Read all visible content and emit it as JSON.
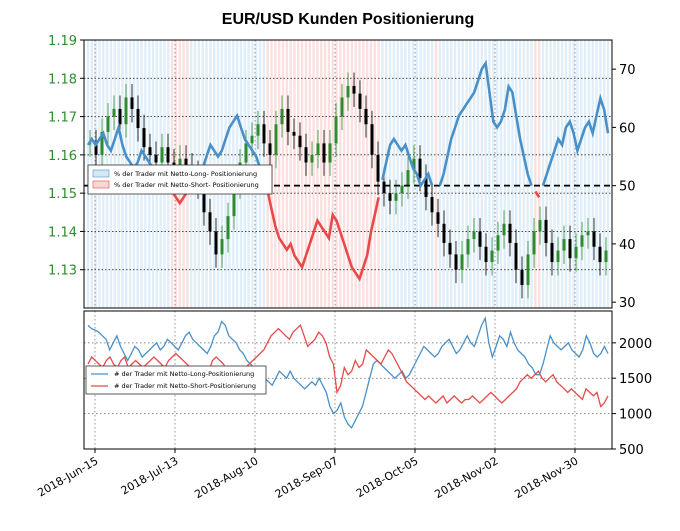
{
  "title": "EUR/USD Kunden Positionierung",
  "colors": {
    "price_up": "#2e8b2e",
    "price_down": "#000000",
    "long_line": "#4a90c8",
    "short_line": "#e84a4a",
    "long_fill": "#d6e8f7",
    "short_fill": "#fbd6d6",
    "left_tick": "#2e8b2e"
  },
  "x_labels": [
    "2018-Jun-15",
    "2018-Jul-13",
    "2018-Aug-10",
    "2018-Sep-07",
    "2018-Oct-05",
    "2018-Nov-02",
    "2018-Nov-30"
  ],
  "chart_data": [
    {
      "type": "line",
      "panel": "top",
      "title": "EUR/USD Kunden Positionierung",
      "y_left_ticks": [
        "1.13",
        "1.14",
        "1.15",
        "1.16",
        "1.17",
        "1.18",
        "1.19"
      ],
      "y_left_range": [
        1.12,
        1.19
      ],
      "y_right_ticks": [
        "30",
        "40",
        "50",
        "60",
        "70"
      ],
      "y_right_range": [
        29,
        75
      ],
      "reference_line": 50,
      "legend": {
        "placement": "upper-left",
        "entries": [
          "% der Trader mit Netto-Long- Positionierung",
          "% der Trader mit Netto-Short- Positionierung"
        ]
      },
      "sentiment_pct_long": [
        57,
        58,
        57,
        58,
        59,
        57,
        56,
        58,
        60,
        57,
        55,
        54,
        53,
        54,
        56,
        55,
        54,
        53,
        52,
        51,
        52,
        50,
        49,
        48,
        47,
        48,
        49,
        50,
        51,
        52,
        53,
        55,
        57,
        56,
        55,
        56,
        58,
        60,
        61,
        62,
        60,
        58,
        57,
        56,
        55,
        53,
        51,
        49,
        46,
        43,
        41,
        40,
        39,
        40,
        38,
        37,
        36,
        38,
        40,
        42,
        44,
        43,
        42,
        41,
        45,
        44,
        42,
        40,
        38,
        36,
        35,
        34,
        36,
        38,
        42,
        45,
        48,
        51,
        54,
        57,
        58,
        57,
        56,
        57,
        55,
        53,
        52,
        50,
        51,
        52,
        50,
        49,
        50,
        52,
        55,
        58,
        60,
        62,
        63,
        64,
        65,
        66,
        68,
        70,
        71,
        66,
        61,
        60,
        61,
        63,
        67,
        66,
        62,
        58,
        55,
        52,
        50,
        49,
        48,
        50,
        52,
        54,
        56,
        58,
        57,
        60,
        61,
        59,
        56,
        58,
        60,
        61,
        59,
        62,
        65,
        63,
        59
      ]
    },
    {
      "type": "line",
      "panel": "bottom",
      "y_right_ticks": [
        "500",
        "1000",
        "1500",
        "2000"
      ],
      "y_right_range": [
        500,
        2450
      ],
      "legend": {
        "placement": "left",
        "entries": [
          "# der Trader mit Netto-Long-Positionierung",
          "# der Trader mit Netto-Short-Positionierung"
        ]
      },
      "series": [
        {
          "name": "# der Trader mit Netto-Long-Positionierung",
          "values": [
            2250,
            2200,
            2180,
            2150,
            2100,
            2050,
            1900,
            2000,
            2100,
            1950,
            1850,
            1750,
            1850,
            1950,
            1900,
            1800,
            1850,
            1900,
            1950,
            2000,
            1900,
            1950,
            2050,
            2000,
            1950,
            1900,
            2000,
            2100,
            2150,
            2050,
            2000,
            1950,
            1900,
            1850,
            1950,
            2100,
            2150,
            2300,
            2250,
            2100,
            2050,
            2000,
            1900,
            1850,
            1750,
            1700,
            1650,
            1600,
            1550,
            1500,
            1450,
            1400,
            1500,
            1600,
            1550,
            1500,
            1600,
            1500,
            1450,
            1400,
            1350,
            1400,
            1450,
            1400,
            1500,
            1400,
            1300,
            1100,
            1000,
            1050,
            1150,
            950,
            850,
            800,
            900,
            1000,
            1100,
            1300,
            1500,
            1700,
            1750,
            1700,
            1650,
            1600,
            1550,
            1500,
            1550,
            1600,
            1500,
            1550,
            1650,
            1750,
            1850,
            1950,
            1900,
            1850,
            1800,
            1850,
            1950,
            2000,
            2050,
            1950,
            1850,
            1900,
            2000,
            2100,
            2000,
            1950,
            2100,
            2250,
            2350,
            2000,
            1800,
            1950,
            2100,
            2050,
            1950,
            2150,
            2000,
            1900,
            1850,
            1800,
            1700,
            1650,
            1550,
            1550,
            1700,
            1900,
            2100,
            2000,
            1950,
            1900,
            1950,
            2000,
            1900,
            1850,
            1800,
            1900,
            2100,
            2000,
            1850,
            1800,
            1850,
            1950,
            1850
          ]
        },
        {
          "name": "# der Trader mit Netto-Short-Positionierung",
          "values": [
            1700,
            1800,
            1750,
            1700,
            1650,
            1750,
            1800,
            1700,
            1650,
            1750,
            1800,
            1650,
            1700,
            1750,
            1700,
            1650,
            1700,
            1750,
            1800,
            1750,
            1700,
            1650,
            1750,
            1800,
            1850,
            1800,
            1750,
            1700,
            1650,
            1600,
            1550,
            1500,
            1450,
            1600,
            1750,
            1800,
            1750,
            1700,
            1600,
            1500,
            1450,
            1500,
            1600,
            1650,
            1700,
            1750,
            1800,
            1850,
            1900,
            2000,
            2100,
            2150,
            2200,
            2150,
            2100,
            2050,
            2150,
            2200,
            2250,
            2100,
            1950,
            2000,
            2050,
            2150,
            2100,
            2000,
            1800,
            1700,
            1300,
            1400,
            1650,
            1550,
            1600,
            1750,
            1650,
            1700,
            1900,
            1850,
            1800,
            1750,
            1700,
            1800,
            1900,
            1850,
            1750,
            1650,
            1550,
            1450,
            1400,
            1350,
            1300,
            1250,
            1200,
            1250,
            1200,
            1150,
            1200,
            1250,
            1150,
            1200,
            1250,
            1200,
            1150,
            1200,
            1200,
            1250,
            1200,
            1150,
            1200,
            1250,
            1300,
            1250,
            1200,
            1150,
            1200,
            1250,
            1300,
            1350,
            1450,
            1500,
            1550,
            1500,
            1550,
            1600,
            1500,
            1450,
            1500,
            1550,
            1450,
            1400,
            1350,
            1300,
            1350,
            1300,
            1250,
            1200,
            1350,
            1300,
            1250,
            1300,
            1100,
            1150,
            1250
          ]
        }
      ]
    }
  ]
}
